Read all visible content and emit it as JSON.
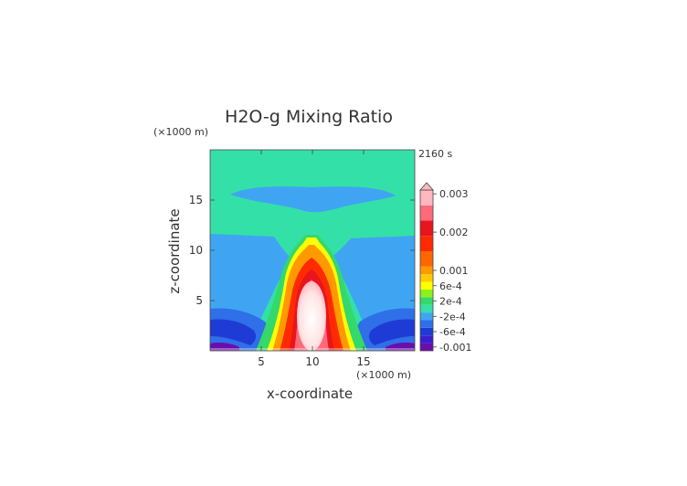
{
  "chart_data": {
    "type": "heatmap",
    "title": "H2O-g Mixing Ratio",
    "time_label": "2160 s",
    "xlabel": "x-coordinate",
    "ylabel": "z-coordinate",
    "x_unit": "(×1000 m)",
    "y_unit": "(×1000 m)",
    "xlim": [
      0,
      20
    ],
    "ylim": [
      0,
      20
    ],
    "x_ticks": [
      5,
      10,
      15
    ],
    "y_ticks": [
      5,
      10,
      15
    ],
    "x_tick_labels": [
      "5",
      "10",
      "15"
    ],
    "y_tick_labels": [
      "5",
      "10",
      "15"
    ],
    "colorbar": {
      "min": -0.0011,
      "max": 0.0031,
      "labels": [
        {
          "value": 0.003,
          "text": "0.003"
        },
        {
          "value": 0.002,
          "text": "0.002"
        },
        {
          "value": 0.001,
          "text": "0.001"
        },
        {
          "value": 0.0006,
          "text": "6e-4"
        },
        {
          "value": 0.0002,
          "text": "2e-4"
        },
        {
          "value": -0.0002,
          "text": "-2e-4"
        },
        {
          "value": -0.0006,
          "text": "-6e-4"
        },
        {
          "value": -0.001,
          "text": "-0.001"
        }
      ],
      "levels": [
        {
          "lo": -0.0011,
          "hi": -0.0009,
          "color": "#6a0dad"
        },
        {
          "lo": -0.0009,
          "hi": -0.0007,
          "color": "#3a1fd0"
        },
        {
          "lo": -0.0007,
          "hi": -0.0005,
          "color": "#1f3bd6"
        },
        {
          "lo": -0.0005,
          "hi": -0.0003,
          "color": "#2f6fe8"
        },
        {
          "lo": -0.0003,
          "hi": -0.0001,
          "color": "#3fa5f2"
        },
        {
          "lo": -0.0001,
          "hi": 0.0001,
          "color": "#33e0a8"
        },
        {
          "lo": 0.0001,
          "hi": 0.0003,
          "color": "#35d86a"
        },
        {
          "lo": 0.0003,
          "hi": 0.0005,
          "color": "#8cf21a"
        },
        {
          "lo": 0.0005,
          "hi": 0.0007,
          "color": "#ffff00"
        },
        {
          "lo": 0.0007,
          "hi": 0.0009,
          "color": "#ffcc00"
        },
        {
          "lo": 0.0009,
          "hi": 0.0011,
          "color": "#ff9900"
        },
        {
          "lo": 0.0011,
          "hi": 0.0015,
          "color": "#ff6600"
        },
        {
          "lo": 0.0015,
          "hi": 0.0019,
          "color": "#ff2a00"
        },
        {
          "lo": 0.0019,
          "hi": 0.0023,
          "color": "#e8141e"
        },
        {
          "lo": 0.0023,
          "hi": 0.0027,
          "color": "#ff6a7a"
        },
        {
          "lo": 0.0027,
          "hi": 0.0031,
          "color": "#ffb8c0"
        }
      ]
    },
    "regions": [
      {
        "name": "background",
        "color": "#33e0a8"
      },
      {
        "name": "upper-dry-lens",
        "color": "#3fa5f2",
        "x_range": [
          2,
          18
        ],
        "z_range": [
          14.5,
          16.3
        ]
      },
      {
        "name": "mid-dry-layer",
        "color": "#3fa5f2",
        "x_range": [
          0,
          20
        ],
        "z_range": [
          3,
          11.5
        ]
      },
      {
        "name": "low-dry-layers",
        "color": "#1f3bd6",
        "x_range": [
          0,
          20
        ],
        "z_range": [
          0.5,
          3
        ]
      },
      {
        "name": "moist-plume",
        "color": "#ff2a00",
        "x_range": [
          6.5,
          13.5
        ],
        "z_range": [
          0,
          11.5
        ]
      },
      {
        "name": "plume-core",
        "color": "#ffe8e8",
        "x_range": [
          8.8,
          11.2
        ],
        "z_range": [
          0.8,
          7
        ]
      }
    ]
  }
}
